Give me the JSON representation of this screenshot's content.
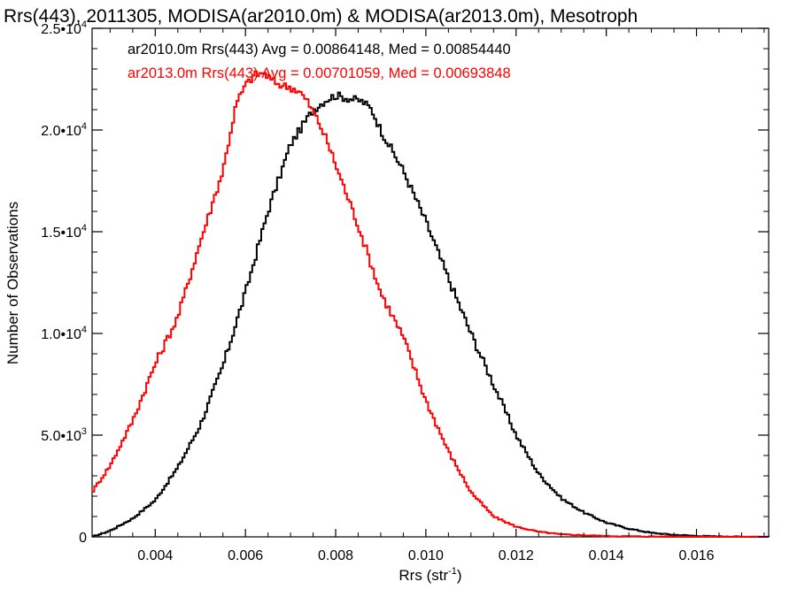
{
  "chart_data": {
    "type": "histogram",
    "title": "Rrs(443), 2011305, MODISA(ar2010.0m) & MODISA(ar2013.0m), Mesotroph",
    "xlabel": "Rrs (str",
    "xlabel_sup": "-1",
    "xlabel_end": ")",
    "ylabel": "Number of Observations",
    "xlim": [
      0.0026,
      0.0176
    ],
    "ylim": [
      0,
      25000
    ],
    "grid": false,
    "legend_position": "top-left",
    "x_ticks": [
      {
        "value": 0.004,
        "label": "0.004"
      },
      {
        "value": 0.006,
        "label": "0.006"
      },
      {
        "value": 0.008,
        "label": "0.008"
      },
      {
        "value": 0.01,
        "label": "0.010"
      },
      {
        "value": 0.012,
        "label": "0.012"
      },
      {
        "value": 0.014,
        "label": "0.014"
      },
      {
        "value": 0.016,
        "label": "0.016"
      }
    ],
    "y_ticks": [
      {
        "value": 0,
        "mantissa": "0",
        "exp": ""
      },
      {
        "value": 5000,
        "mantissa": "5.0•10",
        "exp": "3"
      },
      {
        "value": 10000,
        "mantissa": "1.0•10",
        "exp": "4"
      },
      {
        "value": 15000,
        "mantissa": "1.5•10",
        "exp": "4"
      },
      {
        "value": 20000,
        "mantissa": "2.0•10",
        "exp": "4"
      },
      {
        "value": 25000,
        "mantissa": "2.5•10",
        "exp": "4"
      }
    ],
    "series": [
      {
        "name": "ar2010.0m",
        "color": "#000000",
        "legend": "ar2010.0m Rrs(443) Avg = 0.00864148, Med = 0.00854440",
        "x": [
          0.0026,
          0.003,
          0.0035,
          0.004,
          0.0045,
          0.005,
          0.0055,
          0.006,
          0.0065,
          0.007,
          0.0075,
          0.0078,
          0.008,
          0.0082,
          0.0084,
          0.0086,
          0.0088,
          0.009,
          0.0095,
          0.01,
          0.0105,
          0.011,
          0.0115,
          0.012,
          0.0125,
          0.013,
          0.0135,
          0.014,
          0.0145,
          0.015,
          0.0155,
          0.016,
          0.0165,
          0.017,
          0.0176
        ],
        "values": [
          0,
          300,
          900,
          1800,
          3400,
          5500,
          8400,
          12000,
          16000,
          19300,
          21000,
          21500,
          21700,
          21600,
          21500,
          21400,
          21000,
          20000,
          18000,
          15500,
          12700,
          10000,
          7500,
          5000,
          3100,
          1900,
          1200,
          700,
          400,
          200,
          100,
          50,
          20,
          5,
          0
        ]
      },
      {
        "name": "ar2013.0m",
        "color": "#ff0000",
        "legend": "ar2013.0m Rrs(443) Avg = 0.00701059, Med = 0.00693848",
        "x": [
          0.0026,
          0.003,
          0.0035,
          0.004,
          0.0045,
          0.005,
          0.0055,
          0.0058,
          0.006,
          0.0062,
          0.0064,
          0.0066,
          0.0068,
          0.007,
          0.0072,
          0.0074,
          0.0076,
          0.0078,
          0.008,
          0.0085,
          0.009,
          0.0095,
          0.01,
          0.0105,
          0.011,
          0.0115,
          0.012,
          0.0125,
          0.013,
          0.014,
          0.015,
          0.016,
          0.0176
        ],
        "values": [
          2200,
          3500,
          5700,
          8500,
          10800,
          14500,
          18000,
          21300,
          22200,
          22700,
          22800,
          22400,
          22200,
          22100,
          21900,
          21300,
          20500,
          19500,
          18300,
          15300,
          12000,
          9800,
          6700,
          4200,
          2200,
          1000,
          500,
          250,
          120,
          40,
          15,
          5,
          0
        ]
      }
    ]
  }
}
